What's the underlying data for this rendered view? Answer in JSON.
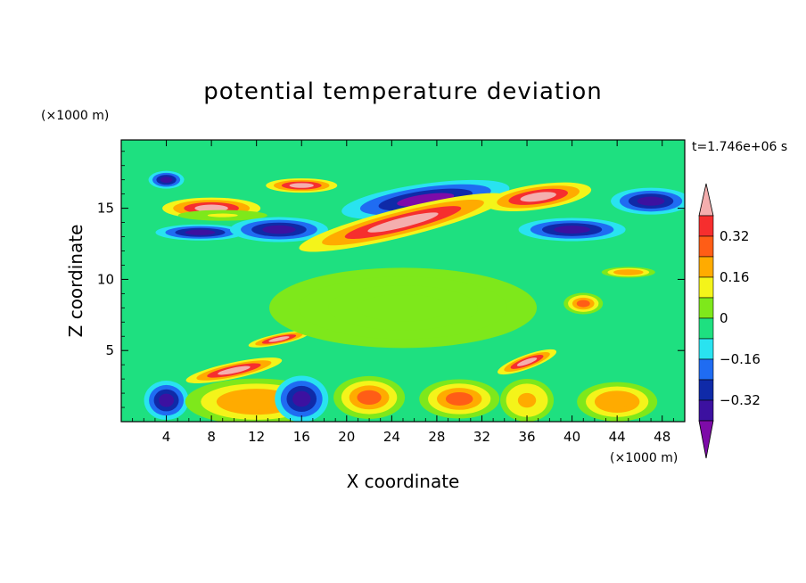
{
  "chart_data": {
    "type": "heatmap",
    "title": "potential temperature deviation",
    "xlabel": "X coordinate",
    "ylabel": "Z coordinate",
    "x_units": "(×1000 m)",
    "y_units": "(×1000 m)",
    "time_label": "t=1.746e+06 s",
    "xlim": [
      0,
      50
    ],
    "ylim": [
      0,
      19.8
    ],
    "x_ticks": [
      4,
      8,
      12,
      16,
      20,
      24,
      28,
      32,
      36,
      40,
      44,
      48
    ],
    "y_ticks": [
      5,
      10,
      15
    ],
    "colorbar": {
      "levels": [
        -0.4,
        -0.32,
        -0.24,
        -0.16,
        -0.08,
        0,
        0.08,
        0.16,
        0.24,
        0.32,
        0.4
      ],
      "labeled_levels": [
        "0.32",
        "0.16",
        "0",
        "−0.16",
        "−0.32"
      ],
      "labeled_values": [
        0.32,
        0.16,
        0,
        -0.16,
        -0.32
      ],
      "colors": [
        "#7d0ba8",
        "#3c11a0",
        "#0f2aa8",
        "#1f6cf2",
        "#29e3f0",
        "#1ee080",
        "#7ee81b",
        "#f4f41a",
        "#ffab00",
        "#ff5d16",
        "#f62e2e",
        "#f4aeae"
      ],
      "extend": "both"
    },
    "background_value": -0.02,
    "features": [
      {
        "x": 4,
        "z": 17,
        "value": -0.38
      },
      {
        "x": 8,
        "z": 15,
        "value": 0.45
      },
      {
        "x": 9,
        "z": 14.5,
        "value": 0.1
      },
      {
        "x": 7,
        "z": 13.3,
        "value": -0.35
      },
      {
        "x": 16,
        "z": 16.6,
        "value": 0.45
      },
      {
        "x": 14,
        "z": 13.5,
        "value": -0.38
      },
      {
        "x": 27,
        "z": 15.6,
        "value": -0.42
      },
      {
        "x": 25,
        "z": 14,
        "value": 0.45
      },
      {
        "x": 37,
        "z": 15.8,
        "value": 0.45
      },
      {
        "x": 40,
        "z": 13.5,
        "value": -0.38
      },
      {
        "x": 47,
        "z": 15.5,
        "value": -0.4
      },
      {
        "x": 10,
        "z": 3.6,
        "value": 0.45
      },
      {
        "x": 14,
        "z": 5.8,
        "value": 0.45
      },
      {
        "x": 4,
        "z": 1.5,
        "value": -0.35
      },
      {
        "x": 12,
        "z": 1.4,
        "value": 0.22
      },
      {
        "x": 16,
        "z": 1.6,
        "value": -0.38
      },
      {
        "x": 22,
        "z": 1.7,
        "value": 0.24
      },
      {
        "x": 30,
        "z": 1.6,
        "value": 0.3
      },
      {
        "x": 36,
        "z": 1.5,
        "value": 0.2
      },
      {
        "x": 44,
        "z": 1.4,
        "value": 0.22
      },
      {
        "x": 25,
        "z": 8,
        "value": 0.05
      },
      {
        "x": 41,
        "z": 8.3,
        "value": 0.28
      },
      {
        "x": 45,
        "z": 10.5,
        "value": 0.22
      },
      {
        "x": 36,
        "z": 4.2,
        "value": 0.45
      }
    ]
  }
}
